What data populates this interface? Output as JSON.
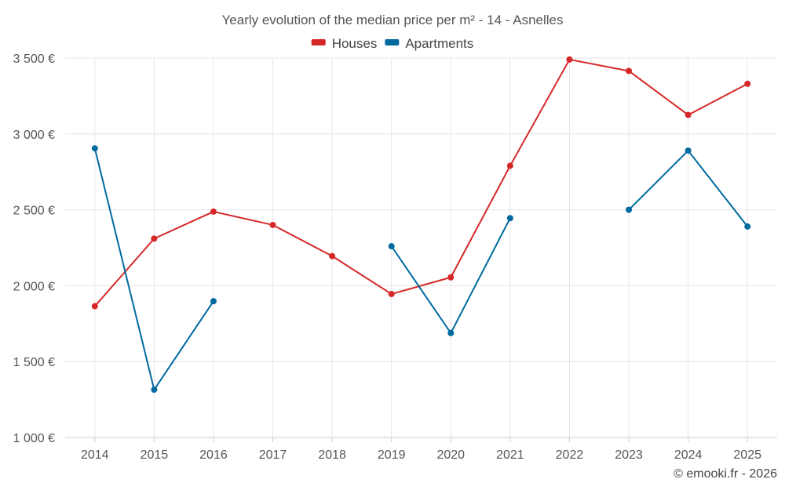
{
  "chart_data": {
    "type": "line",
    "title": "Yearly evolution of the median price per m² - 14 - Asnelles",
    "categories": [
      "2014",
      "2015",
      "2016",
      "2017",
      "2018",
      "2019",
      "2020",
      "2021",
      "2022",
      "2023",
      "2024",
      "2025"
    ],
    "ylim": [
      1000,
      3500
    ],
    "yticks": [
      1000,
      1500,
      2000,
      2500,
      3000,
      3500
    ],
    "ytick_labels": [
      "1 000 €",
      "1 500 €",
      "2 000 €",
      "2 500 €",
      "3 000 €",
      "3 500 €"
    ],
    "grid": true,
    "legend_position": "top-center",
    "series": [
      {
        "name": "Houses",
        "color": "#d62728",
        "values": [
          1865,
          2310,
          2488,
          2400,
          2195,
          1945,
          2055,
          2790,
          3490,
          3415,
          3125,
          3330
        ]
      },
      {
        "name": "Apartments",
        "color": "#006a9e",
        "values": [
          2905,
          1315,
          1898,
          null,
          null,
          2260,
          1688,
          2445,
          null,
          2500,
          2890,
          2390
        ]
      }
    ],
    "xlabel": "",
    "ylabel": ""
  },
  "credit": "© emooki.fr - 2026"
}
